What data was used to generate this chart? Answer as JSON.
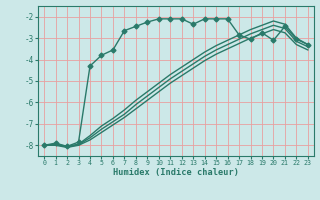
{
  "title": "",
  "xlabel": "Humidex (Indice chaleur)",
  "bg_color": "#cce8e8",
  "grid_color": "#e8a0a0",
  "line_color": "#2a7a6a",
  "ylim": [
    -8.5,
    -1.5
  ],
  "xlim": [
    -0.5,
    23.5
  ],
  "yticks": [
    -8,
    -7,
    -6,
    -5,
    -4,
    -3,
    -2
  ],
  "xticks": [
    0,
    1,
    2,
    3,
    4,
    5,
    6,
    7,
    8,
    9,
    10,
    11,
    12,
    13,
    14,
    15,
    16,
    17,
    18,
    19,
    20,
    21,
    22,
    23
  ],
  "lines": [
    {
      "x": [
        0,
        1,
        2,
        3,
        4,
        5,
        6,
        7,
        8,
        9,
        10,
        11,
        12,
        13,
        14,
        15,
        16,
        17,
        18,
        19,
        20,
        21,
        22,
        23
      ],
      "y": [
        -8.0,
        -7.9,
        -8.05,
        -7.85,
        -4.3,
        -3.8,
        -3.55,
        -2.65,
        -2.45,
        -2.25,
        -2.1,
        -2.1,
        -2.1,
        -2.35,
        -2.1,
        -2.1,
        -2.1,
        -2.85,
        -3.05,
        -2.75,
        -3.1,
        -2.45,
        -3.05,
        -3.3
      ],
      "marker": "D",
      "markersize": 2.5,
      "linewidth": 1.0
    },
    {
      "x": [
        0,
        1,
        2,
        3,
        4,
        5,
        6,
        7,
        8,
        9,
        10,
        11,
        12,
        13,
        14,
        15,
        16,
        17,
        18,
        19,
        20,
        21,
        22,
        23
      ],
      "y": [
        -8.0,
        -7.95,
        -8.05,
        -7.95,
        -7.55,
        -7.1,
        -6.75,
        -6.35,
        -5.9,
        -5.5,
        -5.1,
        -4.7,
        -4.35,
        -4.0,
        -3.65,
        -3.35,
        -3.1,
        -2.85,
        -2.6,
        -2.4,
        -2.2,
        -2.35,
        -3.0,
        -3.3
      ],
      "marker": null,
      "markersize": 0,
      "linewidth": 1.0
    },
    {
      "x": [
        0,
        1,
        2,
        3,
        4,
        5,
        6,
        7,
        8,
        9,
        10,
        11,
        12,
        13,
        14,
        15,
        16,
        17,
        18,
        19,
        20,
        21,
        22,
        23
      ],
      "y": [
        -8.0,
        -7.97,
        -8.07,
        -7.97,
        -7.65,
        -7.25,
        -6.9,
        -6.55,
        -6.1,
        -5.7,
        -5.3,
        -4.9,
        -4.55,
        -4.2,
        -3.85,
        -3.55,
        -3.3,
        -3.05,
        -2.8,
        -2.6,
        -2.4,
        -2.55,
        -3.15,
        -3.4
      ],
      "marker": null,
      "markersize": 0,
      "linewidth": 1.0
    },
    {
      "x": [
        0,
        1,
        2,
        3,
        4,
        5,
        6,
        7,
        8,
        9,
        10,
        11,
        12,
        13,
        14,
        15,
        16,
        17,
        18,
        19,
        20,
        21,
        22,
        23
      ],
      "y": [
        -8.0,
        -8.0,
        -8.1,
        -8.0,
        -7.75,
        -7.4,
        -7.05,
        -6.7,
        -6.3,
        -5.9,
        -5.5,
        -5.1,
        -4.75,
        -4.4,
        -4.05,
        -3.75,
        -3.5,
        -3.25,
        -3.0,
        -2.8,
        -2.6,
        -2.75,
        -3.3,
        -3.55
      ],
      "marker": null,
      "markersize": 0,
      "linewidth": 1.0
    }
  ]
}
